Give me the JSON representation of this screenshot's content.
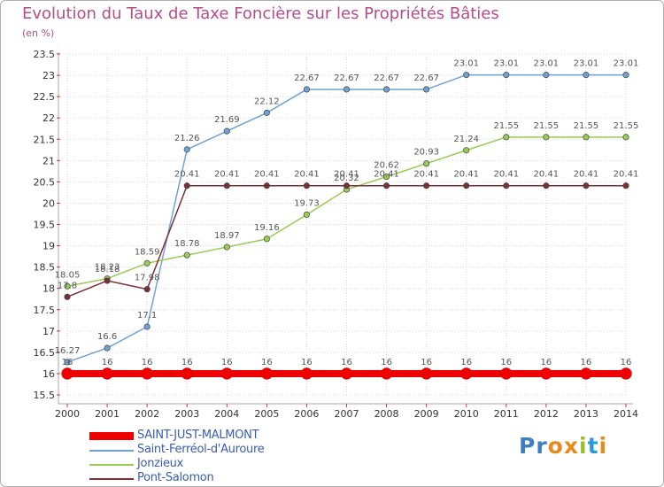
{
  "header": {
    "title": "Evolution du Taux de Taxe Foncière sur les Propriétés Bâties",
    "unit": "(en %)"
  },
  "logo": {
    "text": "Proxiti"
  },
  "chart_data": {
    "type": "line",
    "title": "Evolution du Taux de Taxe Foncière sur les Propriétés Bâties",
    "ylabel": "(en %)",
    "xlabel": "",
    "categories": [
      "2000",
      "2001",
      "2002",
      "2003",
      "2004",
      "2005",
      "2006",
      "2007",
      "2008",
      "2009",
      "2010",
      "2011",
      "2012",
      "2013",
      "2014"
    ],
    "ylim": [
      15.5,
      23.5
    ],
    "ytick_labels": [
      "15.5",
      "16",
      "16.5",
      "17",
      "17.5",
      "18",
      "18.5",
      "19",
      "19.5",
      "20",
      "20.5",
      "21",
      "21.5",
      "22",
      "22.5",
      "23",
      "23.5"
    ],
    "grid": true,
    "legend_position": "bottom-left",
    "series": [
      {
        "name": "SAINT-JUST-MALMONT",
        "color": "#ee0000",
        "values": [
          16,
          16,
          16,
          16,
          16,
          16,
          16,
          16,
          16,
          16,
          16,
          16,
          16,
          16,
          16
        ],
        "labels": [
          "16",
          "16",
          "16",
          "16",
          "16",
          "16",
          "16",
          "16",
          "16",
          "16",
          "16",
          "16",
          "16",
          "16",
          "16"
        ]
      },
      {
        "name": "Saint-Ferréol-d'Auroure",
        "color": "#6fa2d4",
        "values": [
          16.27,
          16.6,
          17.1,
          21.26,
          21.69,
          22.12,
          22.67,
          22.67,
          22.67,
          22.67,
          23.01,
          23.01,
          23.01,
          23.01,
          23.01
        ],
        "labels": [
          "16.27",
          "16.6",
          "17.1",
          "21.26",
          "21.69",
          "22.12",
          "22.67",
          "22.67",
          "22.67",
          "22.67",
          "23.01",
          "23.01",
          "23.01",
          "23.01",
          "23.01"
        ]
      },
      {
        "name": "Jonzieux",
        "color": "#99cc55",
        "values": [
          18.05,
          18.23,
          18.59,
          18.78,
          18.97,
          19.16,
          19.73,
          20.32,
          20.62,
          20.93,
          21.24,
          21.55,
          21.55,
          21.55,
          21.55
        ],
        "labels": [
          "18.05",
          "18.23",
          "18.59",
          "18.78",
          "18.97",
          "19.16",
          "19.73",
          "20.32",
          "20.62",
          "20.93",
          "21.24",
          "21.55",
          "21.55",
          "21.55",
          "21.55"
        ]
      },
      {
        "name": "Pont-Salomon",
        "color": "#7a3038",
        "values": [
          17.8,
          18.18,
          17.98,
          20.41,
          20.41,
          20.41,
          20.41,
          20.41,
          20.41,
          20.41,
          20.41,
          20.41,
          20.41,
          20.41,
          20.41
        ],
        "labels": [
          "17.8",
          "18.18",
          "17.98",
          "20.41",
          "20.41",
          "20.41",
          "20.41",
          "20.41",
          "20.41",
          "20.41",
          "20.41",
          "20.41",
          "20.41",
          "20.41",
          "20.41"
        ]
      }
    ]
  }
}
